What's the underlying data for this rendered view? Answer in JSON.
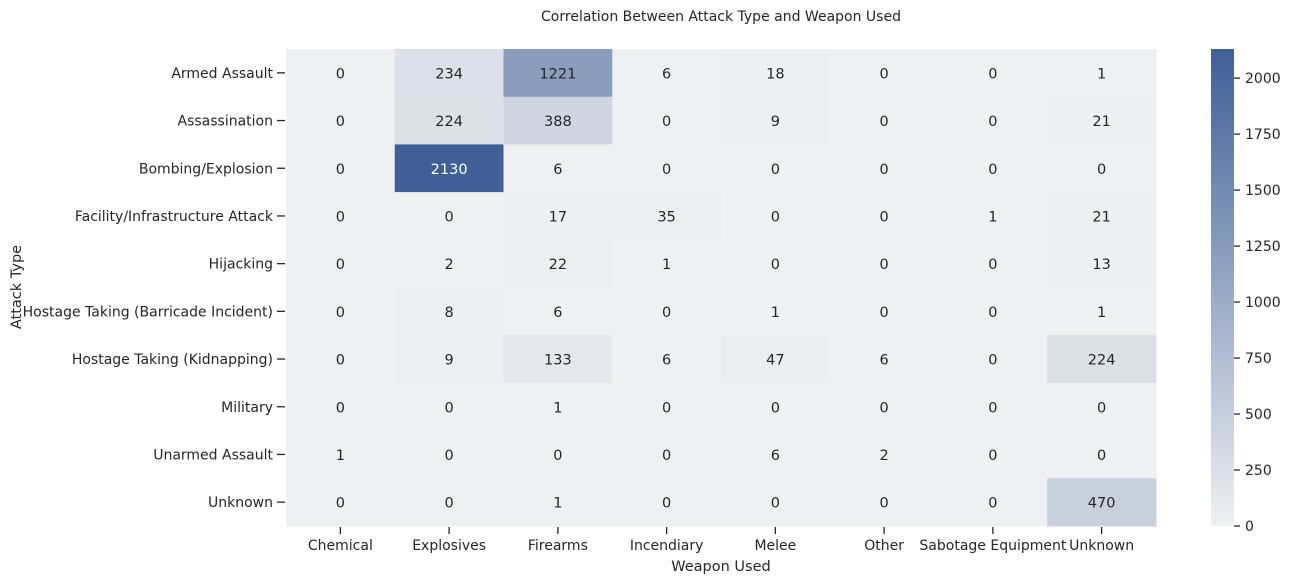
{
  "chart_data": {
    "type": "heatmap",
    "title": "Correlation Between Attack Type and Weapon Used",
    "xlabel": "Weapon Used",
    "ylabel": "Attack Type",
    "x_categories": [
      "Chemical",
      "Explosives",
      "Firearms",
      "Incendiary",
      "Melee",
      "Other",
      "Sabotage Equipment",
      "Unknown"
    ],
    "y_categories": [
      "Armed Assault",
      "Assassination",
      "Bombing/Explosion",
      "Facility/Infrastructure Attack",
      "Hijacking",
      "Hostage Taking (Barricade Incident)",
      "Hostage Taking (Kidnapping)",
      "Military",
      "Unarmed Assault",
      "Unknown"
    ],
    "values": [
      [
        0,
        234,
        1221,
        6,
        18,
        0,
        0,
        1
      ],
      [
        0,
        224,
        388,
        0,
        9,
        0,
        0,
        21
      ],
      [
        0,
        2130,
        6,
        0,
        0,
        0,
        0,
        0
      ],
      [
        0,
        0,
        17,
        35,
        0,
        0,
        1,
        21
      ],
      [
        0,
        2,
        22,
        1,
        0,
        0,
        0,
        13
      ],
      [
        0,
        8,
        6,
        0,
        1,
        0,
        0,
        1
      ],
      [
        0,
        9,
        133,
        6,
        47,
        6,
        0,
        224
      ],
      [
        0,
        0,
        1,
        0,
        0,
        0,
        0,
        0
      ],
      [
        1,
        0,
        0,
        0,
        6,
        2,
        0,
        0
      ],
      [
        0,
        0,
        1,
        0,
        0,
        0,
        0,
        470
      ]
    ],
    "colorbar": {
      "min": 0,
      "max": 2130,
      "ticks": [
        0,
        250,
        500,
        750,
        1000,
        1250,
        1500,
        1750,
        2000
      ]
    },
    "colors": {
      "low": "#eff0f2",
      "high": "#3f5f96"
    }
  }
}
